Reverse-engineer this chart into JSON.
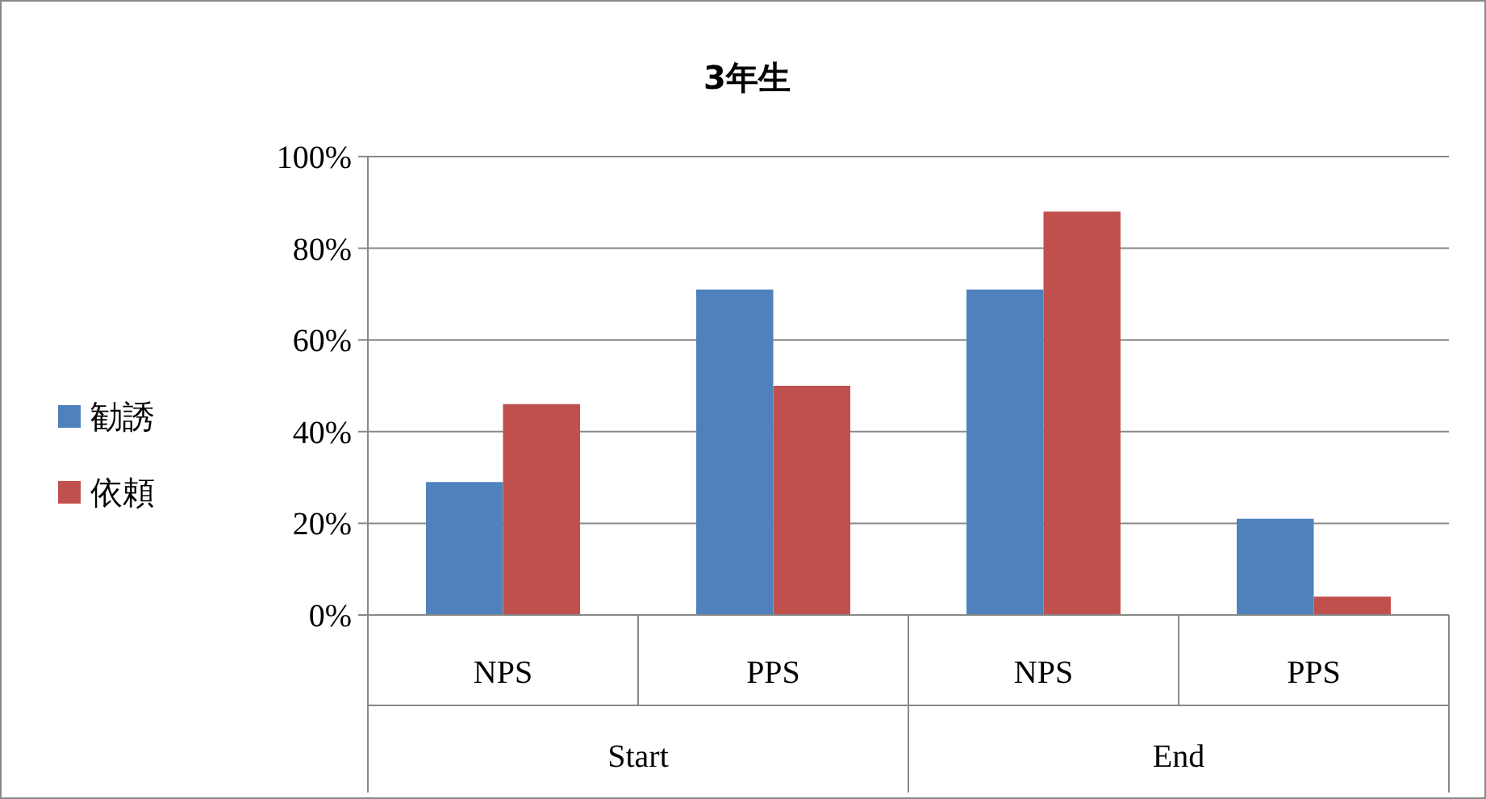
{
  "chart_data": {
    "type": "bar",
    "title": "3年生",
    "categories": [
      "NPS",
      "PPS",
      "NPS",
      "PPS"
    ],
    "series": [
      {
        "name": "勧誘",
        "color": "#4f81bd",
        "values": [
          29,
          71,
          71,
          21
        ]
      },
      {
        "name": "依頼",
        "color": "#c0504d",
        "values": [
          46,
          50,
          88,
          4
        ]
      }
    ],
    "annotations": [
      "Start",
      "End"
    ],
    "ylim": [
      0,
      100
    ],
    "yticks": [
      {
        "value": 0,
        "label": "0%"
      },
      {
        "value": 20,
        "label": "20%"
      },
      {
        "value": 40,
        "label": "40%"
      },
      {
        "value": 60,
        "label": "60%"
      },
      {
        "value": 80,
        "label": "80%"
      },
      {
        "value": 100,
        "label": "100%"
      }
    ],
    "grid": "y",
    "legend": "left"
  }
}
